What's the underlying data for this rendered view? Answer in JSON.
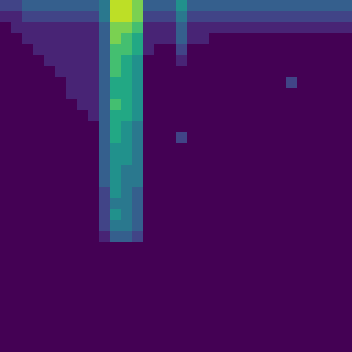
{
  "chart_data": {
    "type": "heatmap",
    "tick_labels": false,
    "color": "viridis",
    "zlim": [
      0,
      10
    ],
    "cells": [
      [
        2,
        2,
        3,
        3,
        3,
        3,
        3,
        3,
        3,
        4,
        9,
        9,
        8,
        3,
        3,
        3,
        5,
        3,
        3,
        3,
        3,
        3,
        3,
        3,
        3,
        3,
        3,
        3,
        3,
        3,
        3,
        3
      ],
      [
        1,
        1,
        2,
        2,
        2,
        2,
        2,
        2,
        2,
        4,
        9,
        9,
        8,
        2,
        2,
        2,
        4,
        2,
        2,
        2,
        2,
        2,
        2,
        2,
        2,
        2,
        2,
        2,
        2,
        2,
        2,
        2
      ],
      [
        0,
        1,
        1,
        1,
        1,
        1,
        1,
        1,
        1,
        3,
        8,
        8,
        7,
        1,
        1,
        1,
        3,
        1,
        1,
        1,
        1,
        1,
        1,
        1,
        1,
        1,
        1,
        1,
        1,
        1,
        1,
        1
      ],
      [
        0,
        0,
        1,
        1,
        1,
        1,
        1,
        1,
        1,
        3,
        8,
        7,
        6,
        1,
        1,
        1,
        3,
        1,
        1,
        0,
        0,
        0,
        0,
        0,
        0,
        0,
        0,
        0,
        0,
        0,
        0,
        0
      ],
      [
        0,
        0,
        0,
        1,
        1,
        1,
        1,
        1,
        1,
        3,
        7,
        7,
        6,
        1,
        0,
        0,
        2,
        0,
        0,
        0,
        0,
        0,
        0,
        0,
        0,
        0,
        0,
        0,
        0,
        0,
        0,
        0
      ],
      [
        0,
        0,
        0,
        0,
        1,
        1,
        1,
        1,
        1,
        3,
        7,
        6,
        5,
        0,
        0,
        0,
        1,
        0,
        0,
        0,
        0,
        0,
        0,
        0,
        0,
        0,
        0,
        0,
        0,
        0,
        0,
        0
      ],
      [
        0,
        0,
        0,
        0,
        0,
        1,
        1,
        1,
        1,
        3,
        7,
        6,
        5,
        0,
        0,
        0,
        0,
        0,
        0,
        0,
        0,
        0,
        0,
        0,
        0,
        0,
        0,
        0,
        0,
        0,
        0,
        0
      ],
      [
        0,
        0,
        0,
        0,
        0,
        0,
        1,
        1,
        1,
        3,
        6,
        6,
        5,
        0,
        0,
        0,
        0,
        0,
        0,
        0,
        0,
        0,
        0,
        0,
        0,
        0,
        2,
        0,
        0,
        0,
        0,
        0
      ],
      [
        0,
        0,
        0,
        0,
        0,
        0,
        1,
        1,
        1,
        3,
        6,
        6,
        5,
        0,
        0,
        0,
        0,
        0,
        0,
        0,
        0,
        0,
        0,
        0,
        0,
        0,
        0,
        0,
        0,
        0,
        0,
        0
      ],
      [
        0,
        0,
        0,
        0,
        0,
        0,
        0,
        1,
        1,
        3,
        7,
        6,
        5,
        0,
        0,
        0,
        0,
        0,
        0,
        0,
        0,
        0,
        0,
        0,
        0,
        0,
        0,
        0,
        0,
        0,
        0,
        0
      ],
      [
        0,
        0,
        0,
        0,
        0,
        0,
        0,
        0,
        1,
        3,
        6,
        6,
        5,
        0,
        0,
        0,
        0,
        0,
        0,
        0,
        0,
        0,
        0,
        0,
        0,
        0,
        0,
        0,
        0,
        0,
        0,
        0
      ],
      [
        0,
        0,
        0,
        0,
        0,
        0,
        0,
        0,
        0,
        3,
        6,
        5,
        4,
        0,
        0,
        0,
        0,
        0,
        0,
        0,
        0,
        0,
        0,
        0,
        0,
        0,
        0,
        0,
        0,
        0,
        0,
        0
      ],
      [
        0,
        0,
        0,
        0,
        0,
        0,
        0,
        0,
        0,
        3,
        6,
        5,
        4,
        0,
        0,
        0,
        2,
        0,
        0,
        0,
        0,
        0,
        0,
        0,
        0,
        0,
        0,
        0,
        0,
        0,
        0,
        0
      ],
      [
        0,
        0,
        0,
        0,
        0,
        0,
        0,
        0,
        0,
        3,
        5,
        5,
        4,
        0,
        0,
        0,
        0,
        0,
        0,
        0,
        0,
        0,
        0,
        0,
        0,
        0,
        0,
        0,
        0,
        0,
        0,
        0
      ],
      [
        0,
        0,
        0,
        0,
        0,
        0,
        0,
        0,
        0,
        3,
        5,
        5,
        4,
        0,
        0,
        0,
        0,
        0,
        0,
        0,
        0,
        0,
        0,
        0,
        0,
        0,
        0,
        0,
        0,
        0,
        0,
        0
      ],
      [
        0,
        0,
        0,
        0,
        0,
        0,
        0,
        0,
        0,
        3,
        5,
        4,
        4,
        0,
        0,
        0,
        0,
        0,
        0,
        0,
        0,
        0,
        0,
        0,
        0,
        0,
        0,
        0,
        0,
        0,
        0,
        0
      ],
      [
        0,
        0,
        0,
        0,
        0,
        0,
        0,
        0,
        0,
        3,
        5,
        4,
        4,
        0,
        0,
        0,
        0,
        0,
        0,
        0,
        0,
        0,
        0,
        0,
        0,
        0,
        0,
        0,
        0,
        0,
        0,
        0
      ],
      [
        0,
        0,
        0,
        0,
        0,
        0,
        0,
        0,
        0,
        2,
        5,
        4,
        3,
        0,
        0,
        0,
        0,
        0,
        0,
        0,
        0,
        0,
        0,
        0,
        0,
        0,
        0,
        0,
        0,
        0,
        0,
        0
      ],
      [
        0,
        0,
        0,
        0,
        0,
        0,
        0,
        0,
        0,
        2,
        4,
        4,
        3,
        0,
        0,
        0,
        0,
        0,
        0,
        0,
        0,
        0,
        0,
        0,
        0,
        0,
        0,
        0,
        0,
        0,
        0,
        0
      ],
      [
        0,
        0,
        0,
        0,
        0,
        0,
        0,
        0,
        0,
        2,
        5,
        4,
        3,
        0,
        0,
        0,
        0,
        0,
        0,
        0,
        0,
        0,
        0,
        0,
        0,
        0,
        0,
        0,
        0,
        0,
        0,
        0
      ],
      [
        0,
        0,
        0,
        0,
        0,
        0,
        0,
        0,
        0,
        2,
        4,
        4,
        3,
        0,
        0,
        0,
        0,
        0,
        0,
        0,
        0,
        0,
        0,
        0,
        0,
        0,
        0,
        0,
        0,
        0,
        0,
        0
      ],
      [
        0,
        0,
        0,
        0,
        0,
        0,
        0,
        0,
        0,
        1,
        3,
        3,
        2,
        0,
        0,
        0,
        0,
        0,
        0,
        0,
        0,
        0,
        0,
        0,
        0,
        0,
        0,
        0,
        0,
        0,
        0,
        0
      ],
      [
        0,
        0,
        0,
        0,
        0,
        0,
        0,
        0,
        0,
        0,
        0,
        0,
        0,
        0,
        0,
        0,
        0,
        0,
        0,
        0,
        0,
        0,
        0,
        0,
        0,
        0,
        0,
        0,
        0,
        0,
        0,
        0
      ],
      [
        0,
        0,
        0,
        0,
        0,
        0,
        0,
        0,
        0,
        0,
        0,
        0,
        0,
        0,
        0,
        0,
        0,
        0,
        0,
        0,
        0,
        0,
        0,
        0,
        0,
        0,
        0,
        0,
        0,
        0,
        0,
        0
      ],
      [
        0,
        0,
        0,
        0,
        0,
        0,
        0,
        0,
        0,
        0,
        0,
        0,
        0,
        0,
        0,
        0,
        0,
        0,
        0,
        0,
        0,
        0,
        0,
        0,
        0,
        0,
        0,
        0,
        0,
        0,
        0,
        0
      ],
      [
        0,
        0,
        0,
        0,
        0,
        0,
        0,
        0,
        0,
        0,
        0,
        0,
        0,
        0,
        0,
        0,
        0,
        0,
        0,
        0,
        0,
        0,
        0,
        0,
        0,
        0,
        0,
        0,
        0,
        0,
        0,
        0
      ],
      [
        0,
        0,
        0,
        0,
        0,
        0,
        0,
        0,
        0,
        0,
        0,
        0,
        0,
        0,
        0,
        0,
        0,
        0,
        0,
        0,
        0,
        0,
        0,
        0,
        0,
        0,
        0,
        0,
        0,
        0,
        0,
        0
      ],
      [
        0,
        0,
        0,
        0,
        0,
        0,
        0,
        0,
        0,
        0,
        0,
        0,
        0,
        0,
        0,
        0,
        0,
        0,
        0,
        0,
        0,
        0,
        0,
        0,
        0,
        0,
        0,
        0,
        0,
        0,
        0,
        0
      ],
      [
        0,
        0,
        0,
        0,
        0,
        0,
        0,
        0,
        0,
        0,
        0,
        0,
        0,
        0,
        0,
        0,
        0,
        0,
        0,
        0,
        0,
        0,
        0,
        0,
        0,
        0,
        0,
        0,
        0,
        0,
        0,
        0
      ],
      [
        0,
        0,
        0,
        0,
        0,
        0,
        0,
        0,
        0,
        0,
        0,
        0,
        0,
        0,
        0,
        0,
        0,
        0,
        0,
        0,
        0,
        0,
        0,
        0,
        0,
        0,
        0,
        0,
        0,
        0,
        0,
        0
      ],
      [
        0,
        0,
        0,
        0,
        0,
        0,
        0,
        0,
        0,
        0,
        0,
        0,
        0,
        0,
        0,
        0,
        0,
        0,
        0,
        0,
        0,
        0,
        0,
        0,
        0,
        0,
        0,
        0,
        0,
        0,
        0,
        0
      ],
      [
        0,
        0,
        0,
        0,
        0,
        0,
        0,
        0,
        0,
        0,
        0,
        0,
        0,
        0,
        0,
        0,
        0,
        0,
        0,
        0,
        0,
        0,
        0,
        0,
        0,
        0,
        0,
        0,
        0,
        0,
        0,
        0
      ]
    ]
  }
}
